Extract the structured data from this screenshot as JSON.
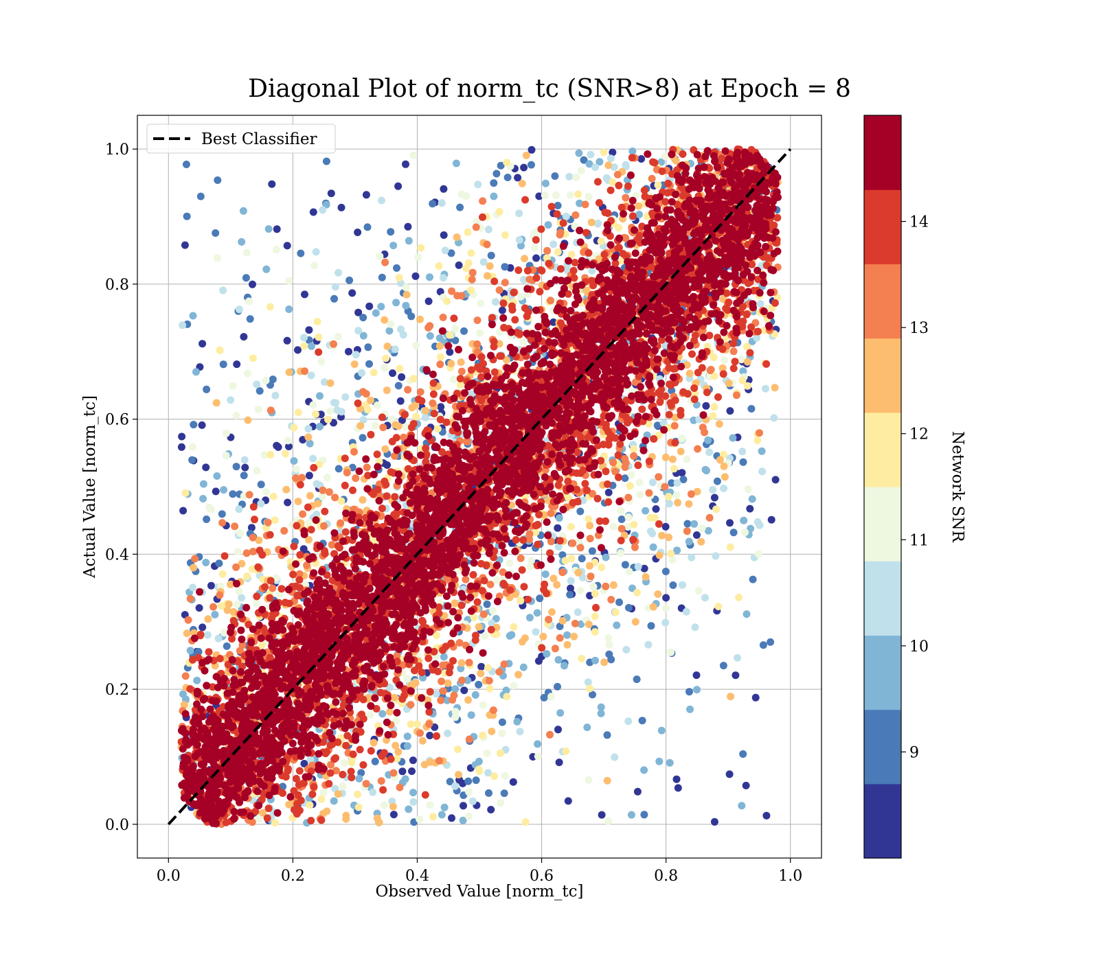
{
  "chart_data": {
    "type": "scatter",
    "title": "Diagonal Plot of norm_tc (SNR>8) at Epoch = 8",
    "xlabel": "Observed Value [norm_tc]",
    "ylabel": "Actual Value [norm_tc]",
    "xlim": [
      -0.05,
      1.05
    ],
    "ylim": [
      -0.05,
      1.05
    ],
    "xticks": [
      "0.0",
      "0.2",
      "0.4",
      "0.6",
      "0.8",
      "1.0"
    ],
    "yticks": [
      "0.0",
      "0.2",
      "0.4",
      "0.6",
      "0.8",
      "1.0"
    ],
    "grid": true,
    "legend": {
      "location": "top-left",
      "entries": [
        {
          "label": "Best Classifier",
          "style": "black dashed line"
        }
      ]
    },
    "reference_line": {
      "name": "Best Classifier",
      "x": [
        0.0,
        1.0
      ],
      "y": [
        0.0,
        1.0
      ],
      "color": "#000000",
      "style": "dashed"
    },
    "scatter_description": "Dense band of points concentrated along y = x for x in [0.03, 0.97]; high-SNR points (dark red) cluster tightly on the diagonal, lower-SNR points (blue) spread further away.",
    "colorbar": {
      "label": "Network SNR",
      "range": [
        8,
        15
      ],
      "tick_values": [
        9,
        10,
        11,
        12,
        13,
        14
      ],
      "tick_labels": [
        "9",
        "10",
        "11",
        "12",
        "13",
        "14"
      ],
      "colors": [
        "#313695",
        "#4575b4",
        "#74add1",
        "#abd9e9",
        "#e0f3f8",
        "#fee090",
        "#fdae61",
        "#f46d43",
        "#d73027",
        "#a50026"
      ],
      "discrete_colors": [
        "#313695",
        "#4a7ab7",
        "#80b5d6",
        "#c0e1eb",
        "#eef7e0",
        "#feeda1",
        "#fdbd6f",
        "#f47f50",
        "#db3b2c",
        "#a50026"
      ]
    }
  }
}
